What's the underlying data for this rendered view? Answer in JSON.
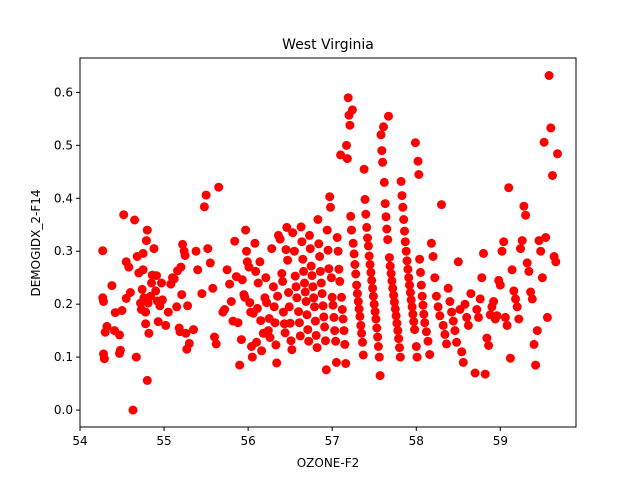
{
  "chart_data": {
    "type": "scatter",
    "title": "West Virginia",
    "xlabel": "OZONE-F2",
    "ylabel": "DEMOGIDX_2-F14",
    "xlim": [
      54.0,
      59.9
    ],
    "ylim": [
      -0.032,
      0.665
    ],
    "xticks": [
      "54",
      "55",
      "56",
      "57",
      "58",
      "59"
    ],
    "yticks": [
      "0.0",
      "0.1",
      "0.2",
      "0.3",
      "0.4",
      "0.5",
      "0.6"
    ],
    "grid": false,
    "legend": "none",
    "marker_color": "#ff0000",
    "points": [
      [
        54.27,
        0.301
      ],
      [
        54.28,
        0.106
      ],
      [
        54.29,
        0.097
      ],
      [
        54.3,
        0.147
      ],
      [
        54.27,
        0.212
      ],
      [
        54.28,
        0.205
      ],
      [
        54.32,
        0.158
      ],
      [
        54.38,
        0.235
      ],
      [
        54.42,
        0.184
      ],
      [
        54.41,
        0.15
      ],
      [
        54.47,
        0.107
      ],
      [
        54.48,
        0.113
      ],
      [
        54.47,
        0.142
      ],
      [
        54.5,
        0.188
      ],
      [
        54.52,
        0.369
      ],
      [
        54.55,
        0.211
      ],
      [
        54.55,
        0.28
      ],
      [
        54.58,
        0.27
      ],
      [
        54.6,
        0.222
      ],
      [
        54.63,
        0.0
      ],
      [
        54.65,
        0.359
      ],
      [
        54.67,
        0.1
      ],
      [
        54.68,
        0.29
      ],
      [
        54.7,
        0.259
      ],
      [
        54.72,
        0.202
      ],
      [
        54.73,
        0.19
      ],
      [
        54.74,
        0.228
      ],
      [
        54.75,
        0.265
      ],
      [
        54.75,
        0.296
      ],
      [
        54.76,
        0.212
      ],
      [
        54.78,
        0.163
      ],
      [
        54.78,
        0.185
      ],
      [
        54.79,
        0.32
      ],
      [
        54.8,
        0.34
      ],
      [
        54.8,
        0.056
      ],
      [
        54.81,
        0.202
      ],
      [
        54.82,
        0.145
      ],
      [
        54.84,
        0.215
      ],
      [
        54.85,
        0.24
      ],
      [
        54.86,
        0.255
      ],
      [
        54.88,
        0.305
      ],
      [
        54.9,
        0.225
      ],
      [
        54.91,
        0.254
      ],
      [
        54.92,
        0.206
      ],
      [
        54.93,
        0.167
      ],
      [
        54.95,
        0.197
      ],
      [
        54.97,
        0.24
      ],
      [
        54.98,
        0.208
      ],
      [
        55.02,
        0.16
      ],
      [
        55.05,
        0.185
      ],
      [
        55.08,
        0.238
      ],
      [
        55.1,
        0.25
      ],
      [
        55.12,
        0.248
      ],
      [
        55.15,
        0.195
      ],
      [
        55.16,
        0.263
      ],
      [
        55.18,
        0.155
      ],
      [
        55.19,
        0.148
      ],
      [
        55.2,
        0.27
      ],
      [
        55.21,
        0.218
      ],
      [
        55.22,
        0.313
      ],
      [
        55.24,
        0.3
      ],
      [
        55.25,
        0.292
      ],
      [
        55.26,
        0.145
      ],
      [
        55.27,
        0.115
      ],
      [
        55.28,
        0.197
      ],
      [
        55.3,
        0.126
      ],
      [
        55.35,
        0.152
      ],
      [
        55.38,
        0.3
      ],
      [
        55.4,
        0.265
      ],
      [
        55.45,
        0.22
      ],
      [
        55.48,
        0.384
      ],
      [
        55.5,
        0.406
      ],
      [
        55.52,
        0.305
      ],
      [
        55.55,
        0.278
      ],
      [
        55.58,
        0.23
      ],
      [
        55.6,
        0.138
      ],
      [
        55.62,
        0.125
      ],
      [
        55.65,
        0.421
      ],
      [
        55.7,
        0.185
      ],
      [
        55.72,
        0.19
      ],
      [
        55.75,
        0.265
      ],
      [
        55.78,
        0.238
      ],
      [
        55.8,
        0.205
      ],
      [
        55.82,
        0.168
      ],
      [
        55.84,
        0.319
      ],
      [
        55.86,
        0.252
      ],
      [
        55.88,
        0.165
      ],
      [
        55.9,
        0.085
      ],
      [
        55.92,
        0.133
      ],
      [
        55.93,
        0.246
      ],
      [
        55.95,
        0.218
      ],
      [
        55.96,
        0.213
      ],
      [
        55.97,
        0.34
      ],
      [
        55.98,
        0.3
      ],
      [
        55.99,
        0.28
      ],
      [
        56.01,
        0.27
      ],
      [
        56.02,
        0.203
      ],
      [
        56.03,
        0.185
      ],
      [
        56.04,
        0.12
      ],
      [
        56.05,
        0.1
      ],
      [
        56.06,
        0.183
      ],
      [
        56.08,
        0.315
      ],
      [
        56.09,
        0.262
      ],
      [
        56.1,
        0.128
      ],
      [
        56.11,
        0.192
      ],
      [
        56.12,
        0.24
      ],
      [
        56.14,
        0.28
      ],
      [
        56.15,
        0.169
      ],
      [
        56.16,
        0.112
      ],
      [
        56.18,
        0.145
      ],
      [
        56.2,
        0.212
      ],
      [
        56.21,
        0.25
      ],
      [
        56.22,
        0.203
      ],
      [
        56.24,
        0.15
      ],
      [
        56.25,
        0.173
      ],
      [
        56.26,
        0.137
      ],
      [
        56.28,
        0.305
      ],
      [
        56.3,
        0.233
      ],
      [
        56.31,
        0.195
      ],
      [
        56.32,
        0.165
      ],
      [
        56.33,
        0.123
      ],
      [
        56.34,
        0.089
      ],
      [
        56.35,
        0.215
      ],
      [
        56.36,
        0.33
      ],
      [
        56.38,
        0.323
      ],
      [
        56.4,
        0.258
      ],
      [
        56.41,
        0.243
      ],
      [
        56.42,
        0.185
      ],
      [
        56.43,
        0.163
      ],
      [
        56.44,
        0.146
      ],
      [
        56.45,
        0.303
      ],
      [
        56.46,
        0.345
      ],
      [
        56.47,
        0.283
      ],
      [
        56.48,
        0.222
      ],
      [
        56.49,
        0.195
      ],
      [
        56.5,
        0.164
      ],
      [
        56.51,
        0.131
      ],
      [
        56.52,
        0.114
      ],
      [
        56.53,
        0.335
      ],
      [
        56.55,
        0.3
      ],
      [
        56.56,
        0.253
      ],
      [
        56.57,
        0.233
      ],
      [
        56.58,
        0.212
      ],
      [
        56.6,
        0.186
      ],
      [
        56.61,
        0.165
      ],
      [
        56.62,
        0.14
      ],
      [
        56.63,
        0.346
      ],
      [
        56.64,
        0.318
      ],
      [
        56.65,
        0.285
      ],
      [
        56.66,
        0.262
      ],
      [
        56.67,
        0.24
      ],
      [
        56.68,
        0.223
      ],
      [
        56.69,
        0.205
      ],
      [
        56.7,
        0.18
      ],
      [
        56.71,
        0.152
      ],
      [
        56.72,
        0.13
      ],
      [
        56.73,
        0.33
      ],
      [
        56.74,
        0.305
      ],
      [
        56.75,
        0.272
      ],
      [
        56.76,
        0.254
      ],
      [
        56.77,
        0.233
      ],
      [
        56.78,
        0.212
      ],
      [
        56.79,
        0.195
      ],
      [
        56.8,
        0.168
      ],
      [
        56.81,
        0.141
      ],
      [
        56.82,
        0.118
      ],
      [
        56.83,
        0.36
      ],
      [
        56.84,
        0.314
      ],
      [
        56.85,
        0.29
      ],
      [
        56.86,
        0.262
      ],
      [
        56.87,
        0.24
      ],
      [
        56.88,
        0.22
      ],
      [
        56.89,
        0.197
      ],
      [
        56.9,
        0.176
      ],
      [
        56.91,
        0.157
      ],
      [
        56.92,
        0.131
      ],
      [
        56.93,
        0.076
      ],
      [
        56.94,
        0.34
      ],
      [
        56.95,
        0.302
      ],
      [
        56.96,
        0.267
      ],
      [
        56.97,
        0.403
      ],
      [
        56.98,
        0.383
      ],
      [
        56.99,
        0.25
      ],
      [
        57.0,
        0.213
      ],
      [
        57.01,
        0.198
      ],
      [
        57.02,
        0.175
      ],
      [
        57.03,
        0.15
      ],
      [
        57.04,
        0.13
      ],
      [
        57.05,
        0.09
      ],
      [
        57.06,
        0.326
      ],
      [
        57.07,
        0.3
      ],
      [
        57.08,
        0.266
      ],
      [
        57.09,
        0.243
      ],
      [
        57.1,
        0.482
      ],
      [
        57.11,
        0.213
      ],
      [
        57.12,
        0.19
      ],
      [
        57.13,
        0.172
      ],
      [
        57.14,
        0.15
      ],
      [
        57.15,
        0.124
      ],
      [
        57.16,
        0.088
      ],
      [
        57.17,
        0.5
      ],
      [
        57.18,
        0.475
      ],
      [
        57.19,
        0.59
      ],
      [
        57.2,
        0.557
      ],
      [
        57.21,
        0.538
      ],
      [
        57.22,
        0.366
      ],
      [
        57.23,
        0.34
      ],
      [
        57.24,
        0.567
      ],
      [
        57.25,
        0.315
      ],
      [
        57.26,
        0.295
      ],
      [
        57.27,
        0.275
      ],
      [
        57.28,
        0.257
      ],
      [
        57.29,
        0.236
      ],
      [
        57.3,
        0.22
      ],
      [
        57.31,
        0.205
      ],
      [
        57.32,
        0.191
      ],
      [
        57.33,
        0.177
      ],
      [
        57.34,
        0.16
      ],
      [
        57.35,
        0.145
      ],
      [
        57.36,
        0.128
      ],
      [
        57.37,
        0.104
      ],
      [
        57.38,
        0.455
      ],
      [
        57.39,
        0.398
      ],
      [
        57.4,
        0.37
      ],
      [
        57.41,
        0.345
      ],
      [
        57.42,
        0.325
      ],
      [
        57.43,
        0.31
      ],
      [
        57.44,
        0.291
      ],
      [
        57.45,
        0.275
      ],
      [
        57.46,
        0.26
      ],
      [
        57.47,
        0.245
      ],
      [
        57.48,
        0.23
      ],
      [
        57.49,
        0.215
      ],
      [
        57.5,
        0.2
      ],
      [
        57.51,
        0.186
      ],
      [
        57.52,
        0.172
      ],
      [
        57.53,
        0.155
      ],
      [
        57.54,
        0.138
      ],
      [
        57.55,
        0.12
      ],
      [
        57.56,
        0.1
      ],
      [
        57.57,
        0.065
      ],
      [
        57.58,
        0.52
      ],
      [
        57.59,
        0.49
      ],
      [
        57.6,
        0.468
      ],
      [
        57.61,
        0.535
      ],
      [
        57.62,
        0.43
      ],
      [
        57.63,
        0.39
      ],
      [
        57.64,
        0.365
      ],
      [
        57.65,
        0.342
      ],
      [
        57.66,
        0.322
      ],
      [
        57.67,
        0.555
      ],
      [
        57.68,
        0.288
      ],
      [
        57.69,
        0.272
      ],
      [
        57.7,
        0.258
      ],
      [
        57.71,
        0.244
      ],
      [
        57.72,
        0.23
      ],
      [
        57.73,
        0.217
      ],
      [
        57.74,
        0.204
      ],
      [
        57.75,
        0.191
      ],
      [
        57.76,
        0.178
      ],
      [
        57.77,
        0.164
      ],
      [
        57.78,
        0.15
      ],
      [
        57.79,
        0.135
      ],
      [
        57.8,
        0.118
      ],
      [
        57.81,
        0.1
      ],
      [
        57.82,
        0.432
      ],
      [
        57.83,
        0.405
      ],
      [
        57.84,
        0.383
      ],
      [
        57.85,
        0.36
      ],
      [
        57.86,
        0.338
      ],
      [
        57.87,
        0.318
      ],
      [
        57.88,
        0.3
      ],
      [
        57.89,
        0.282
      ],
      [
        57.9,
        0.266
      ],
      [
        57.91,
        0.25
      ],
      [
        57.92,
        0.236
      ],
      [
        57.93,
        0.222
      ],
      [
        57.94,
        0.208
      ],
      [
        57.95,
        0.195
      ],
      [
        57.96,
        0.181
      ],
      [
        57.97,
        0.167
      ],
      [
        57.98,
        0.152
      ],
      [
        57.99,
        0.505
      ],
      [
        58.0,
        0.12
      ],
      [
        58.01,
        0.1
      ],
      [
        58.02,
        0.47
      ],
      [
        58.03,
        0.445
      ],
      [
        58.04,
        0.285
      ],
      [
        58.05,
        0.26
      ],
      [
        58.06,
        0.236
      ],
      [
        58.07,
        0.215
      ],
      [
        58.08,
        0.198
      ],
      [
        58.09,
        0.181
      ],
      [
        58.1,
        0.165
      ],
      [
        58.12,
        0.148
      ],
      [
        58.14,
        0.13
      ],
      [
        58.16,
        0.105
      ],
      [
        58.18,
        0.315
      ],
      [
        58.2,
        0.29
      ],
      [
        58.22,
        0.25
      ],
      [
        58.24,
        0.215
      ],
      [
        58.26,
        0.195
      ],
      [
        58.28,
        0.178
      ],
      [
        58.3,
        0.388
      ],
      [
        58.32,
        0.16
      ],
      [
        58.34,
        0.143
      ],
      [
        58.36,
        0.125
      ],
      [
        58.38,
        0.23
      ],
      [
        58.4,
        0.205
      ],
      [
        58.42,
        0.185
      ],
      [
        58.44,
        0.168
      ],
      [
        58.46,
        0.15
      ],
      [
        58.48,
        0.128
      ],
      [
        58.5,
        0.28
      ],
      [
        58.52,
        0.19
      ],
      [
        58.54,
        0.11
      ],
      [
        58.56,
        0.09
      ],
      [
        58.58,
        0.2
      ],
      [
        58.6,
        0.175
      ],
      [
        58.62,
        0.16
      ],
      [
        58.65,
        0.22
      ],
      [
        58.7,
        0.07
      ],
      [
        58.72,
        0.19
      ],
      [
        58.74,
        0.175
      ],
      [
        58.76,
        0.21
      ],
      [
        58.78,
        0.25
      ],
      [
        58.8,
        0.296
      ],
      [
        58.82,
        0.068
      ],
      [
        58.84,
        0.136
      ],
      [
        58.86,
        0.122
      ],
      [
        58.88,
        0.18
      ],
      [
        58.9,
        0.195
      ],
      [
        58.92,
        0.205
      ],
      [
        58.94,
        0.172
      ],
      [
        58.96,
        0.178
      ],
      [
        58.98,
        0.245
      ],
      [
        59.0,
        0.236
      ],
      [
        59.02,
        0.3
      ],
      [
        59.04,
        0.318
      ],
      [
        59.06,
        0.175
      ],
      [
        59.08,
        0.16
      ],
      [
        59.1,
        0.42
      ],
      [
        59.12,
        0.098
      ],
      [
        59.14,
        0.265
      ],
      [
        59.16,
        0.225
      ],
      [
        59.18,
        0.21
      ],
      [
        59.2,
        0.195
      ],
      [
        59.22,
        0.172
      ],
      [
        59.24,
        0.305
      ],
      [
        59.26,
        0.32
      ],
      [
        59.28,
        0.385
      ],
      [
        59.3,
        0.368
      ],
      [
        59.32,
        0.278
      ],
      [
        59.34,
        0.262
      ],
      [
        59.36,
        0.223
      ],
      [
        59.38,
        0.21
      ],
      [
        59.4,
        0.124
      ],
      [
        59.42,
        0.085
      ],
      [
        59.44,
        0.15
      ],
      [
        59.46,
        0.32
      ],
      [
        59.48,
        0.3
      ],
      [
        59.5,
        0.25
      ],
      [
        59.52,
        0.506
      ],
      [
        59.54,
        0.326
      ],
      [
        59.56,
        0.175
      ],
      [
        59.58,
        0.632
      ],
      [
        59.6,
        0.533
      ],
      [
        59.62,
        0.443
      ],
      [
        59.64,
        0.29
      ],
      [
        59.66,
        0.28
      ],
      [
        59.68,
        0.484
      ]
    ]
  }
}
